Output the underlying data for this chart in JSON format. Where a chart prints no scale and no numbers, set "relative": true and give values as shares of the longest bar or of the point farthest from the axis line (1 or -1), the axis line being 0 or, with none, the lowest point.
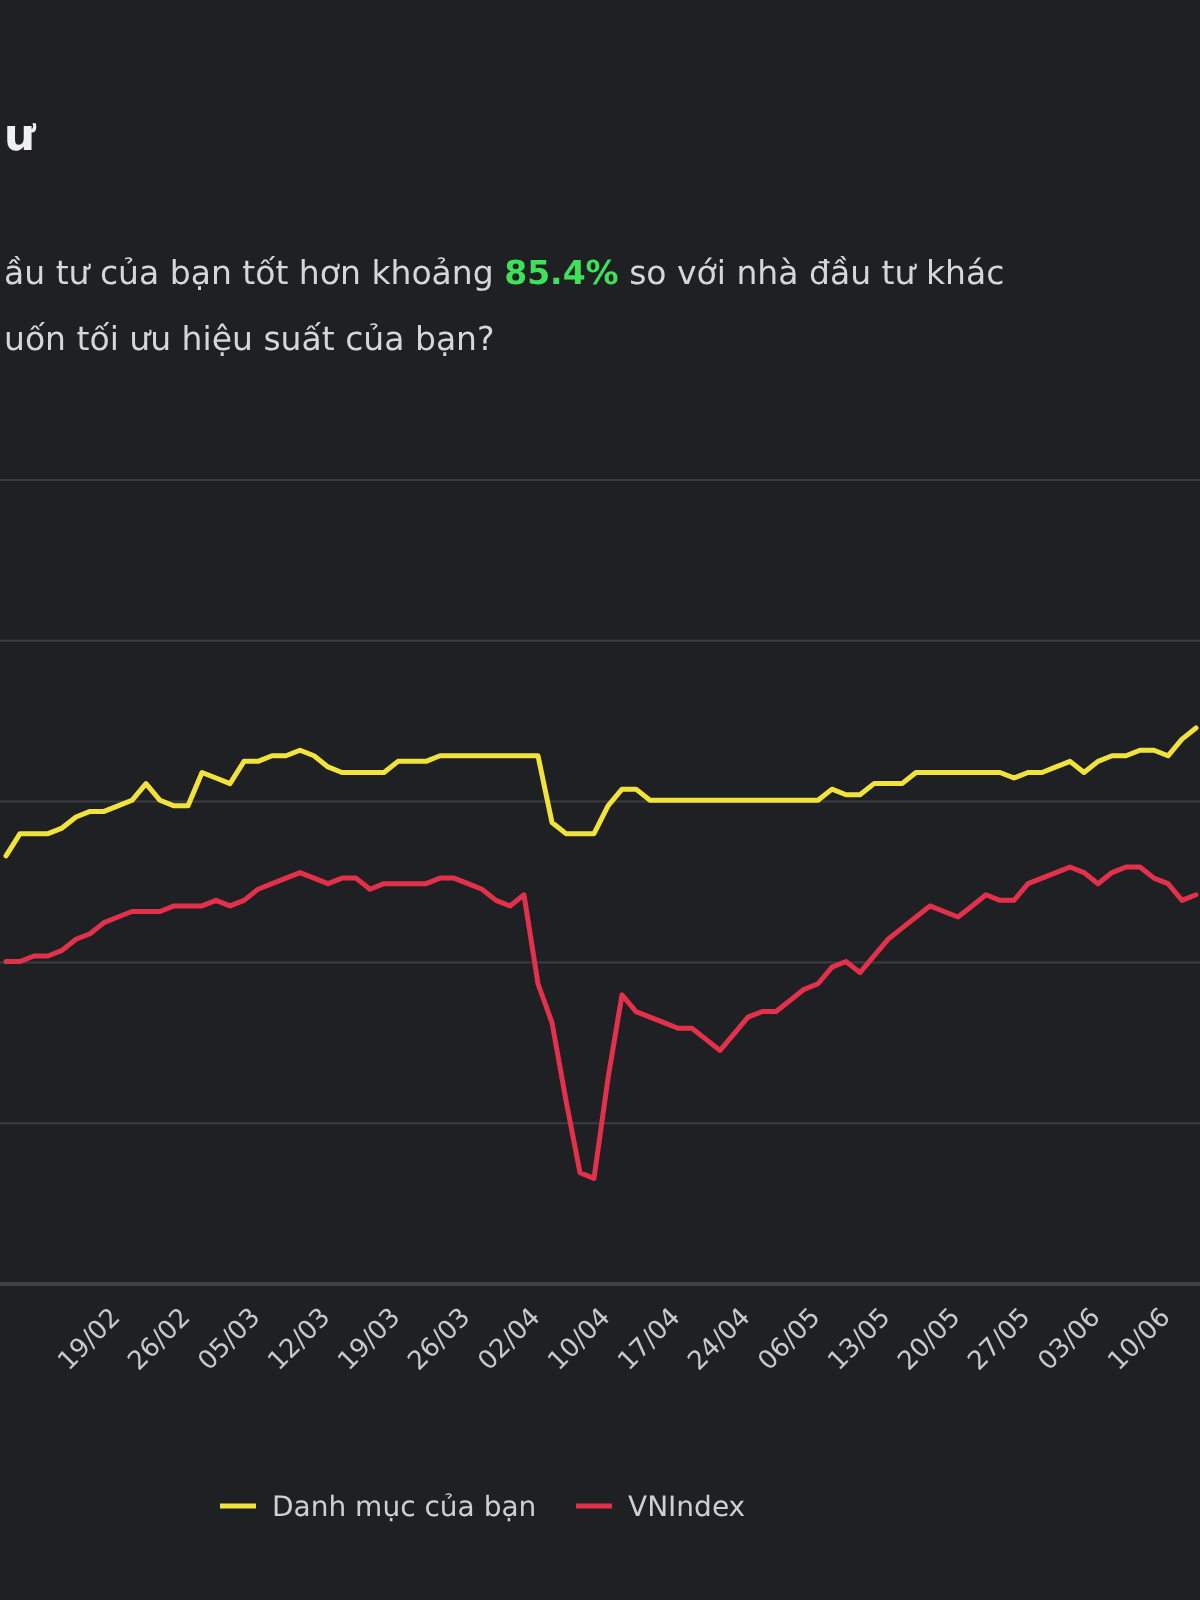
{
  "chart_data": {
    "type": "line",
    "title": "ư",
    "subtitle": "ầu tư của bạn tốt hơn khoảng 85.4% so với nhà đầu tư khác",
    "annotations": [
      "uốn tối ưu hiệu suất của bạn?"
    ],
    "relative": true,
    "grid": "y",
    "legend": "bottom",
    "line_style": "solid",
    "categories": [
      null,
      null,
      null,
      null,
      null,
      null,
      "19/02",
      null,
      null,
      null,
      null,
      "26/02",
      null,
      null,
      null,
      null,
      "05/03",
      null,
      null,
      null,
      null,
      "12/03",
      null,
      null,
      null,
      null,
      "19/03",
      null,
      null,
      null,
      null,
      "26/03",
      null,
      null,
      null,
      null,
      "02/04",
      null,
      null,
      null,
      null,
      "10/04",
      null,
      null,
      null,
      null,
      "17/04",
      null,
      null,
      null,
      null,
      "24/04",
      null,
      null,
      null,
      null,
      "06/05",
      null,
      null,
      null,
      null,
      "13/05",
      null,
      null,
      null,
      null,
      "20/05",
      null,
      null,
      null,
      null,
      "27/05",
      null,
      null,
      null,
      null,
      "03/06",
      null,
      null,
      null,
      null,
      "10/06",
      null,
      null,
      null,
      null
    ],
    "series": [
      {
        "name": "Danh mục của bạn",
        "color": "#f2e33c",
        "values": [
          0.77,
          0.81,
          0.81,
          0.81,
          0.82,
          0.84,
          0.85,
          0.85,
          0.86,
          0.87,
          0.9,
          0.87,
          0.86,
          0.86,
          0.92,
          0.91,
          0.9,
          0.94,
          0.94,
          0.95,
          0.95,
          0.96,
          0.95,
          0.93,
          0.92,
          0.92,
          0.92,
          0.92,
          0.94,
          0.94,
          0.94,
          0.95,
          0.95,
          0.95,
          0.95,
          0.95,
          0.95,
          0.95,
          0.95,
          0.83,
          0.81,
          0.81,
          0.81,
          0.86,
          0.89,
          0.89,
          0.87,
          0.87,
          0.87,
          0.87,
          0.87,
          0.87,
          0.87,
          0.87,
          0.87,
          0.87,
          0.87,
          0.87,
          0.87,
          0.89,
          0.88,
          0.88,
          0.9,
          0.9,
          0.9,
          0.92,
          0.92,
          0.92,
          0.92,
          0.92,
          0.92,
          0.92,
          0.91,
          0.92,
          0.92,
          0.93,
          0.94,
          0.92,
          0.94,
          0.95,
          0.95,
          0.96,
          0.96,
          0.95,
          0.98,
          1.0
        ]
      },
      {
        "name": "VNIndex",
        "color": "#e3304b",
        "values": [
          0.58,
          0.58,
          0.59,
          0.59,
          0.6,
          0.62,
          0.63,
          0.65,
          0.66,
          0.67,
          0.67,
          0.67,
          0.68,
          0.68,
          0.68,
          0.69,
          0.68,
          0.69,
          0.71,
          0.72,
          0.73,
          0.74,
          0.73,
          0.72,
          0.73,
          0.73,
          0.71,
          0.72,
          0.72,
          0.72,
          0.72,
          0.73,
          0.73,
          0.72,
          0.71,
          0.69,
          0.68,
          0.7,
          0.54,
          0.47,
          0.33,
          0.2,
          0.19,
          0.37,
          0.52,
          0.49,
          0.48,
          0.47,
          0.46,
          0.46,
          0.44,
          0.42,
          0.45,
          0.48,
          0.49,
          0.49,
          0.51,
          0.53,
          0.54,
          0.57,
          0.58,
          0.56,
          0.59,
          0.62,
          0.64,
          0.66,
          0.68,
          0.67,
          0.66,
          0.68,
          0.7,
          0.69,
          0.69,
          0.72,
          0.73,
          0.74,
          0.75,
          0.74,
          0.72,
          0.74,
          0.75,
          0.75,
          0.73,
          0.72,
          0.69,
          0.7
        ]
      }
    ]
  }
}
